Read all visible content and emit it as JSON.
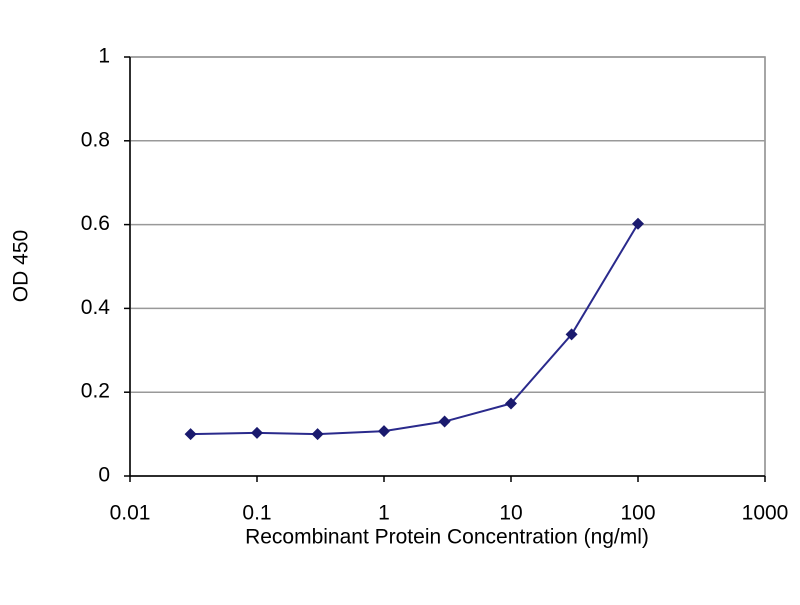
{
  "chart_data": {
    "type": "line",
    "x_label": "Recombinant Protein Concentration (ng/ml)",
    "y_label": "OD 450",
    "x": [
      0.03,
      0.1,
      0.3,
      1,
      3,
      10,
      30,
      100
    ],
    "series": [
      {
        "color": "#2a2a8c",
        "values": [
          0.1,
          0.103,
          0.1,
          0.107,
          0.13,
          0.173,
          0.338,
          0.602
        ]
      }
    ],
    "xlim": [
      0.01,
      1000
    ],
    "xticks": [
      0.01,
      0.1,
      1,
      10,
      100,
      1000
    ],
    "xlog": true,
    "ylim": [
      0,
      1
    ],
    "yticks": [
      0,
      0.2,
      0.4,
      0.6,
      0.8,
      1
    ],
    "grid": true
  }
}
